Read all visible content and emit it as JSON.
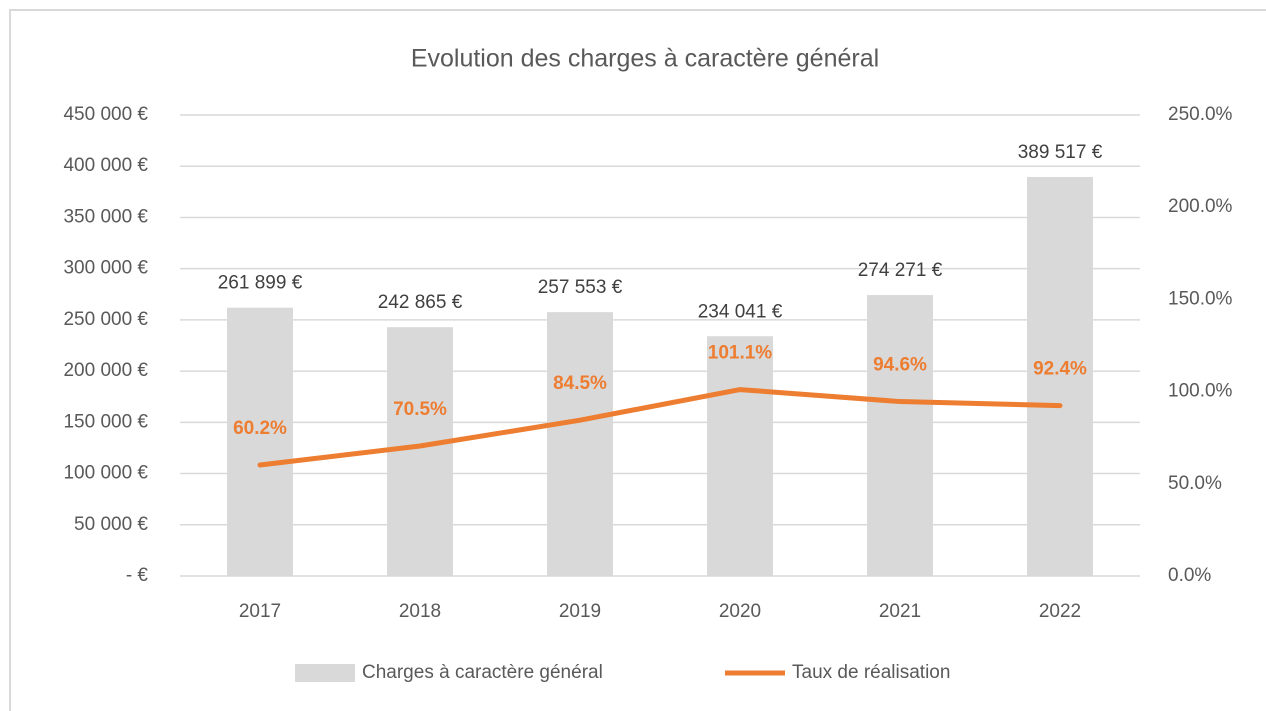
{
  "chart_data": {
    "type": "bar",
    "title": "Evolution des charges à caractère général",
    "categories": [
      "2017",
      "2018",
      "2019",
      "2020",
      "2021",
      "2022"
    ],
    "series": [
      {
        "name": "Charges à caractère général",
        "color": "#d9d9d9",
        "type": "bar",
        "values": [
          261899,
          242865,
          257553,
          234041,
          274271,
          389517
        ],
        "value_labels": [
          "261 899 €",
          "242 865 €",
          "257 553 €",
          "234 041 €",
          "274 271 €",
          "389 517 €"
        ]
      },
      {
        "name": "Taux de réalisation",
        "color": "#ed7d31",
        "type": "line",
        "axis": "y2",
        "values": [
          60.2,
          70.5,
          84.5,
          101.1,
          94.6,
          92.4
        ],
        "value_labels": [
          "60.2%",
          "70.5%",
          "84.5%",
          "101.1%",
          "94.6%",
          "92.4%"
        ]
      }
    ],
    "ylim": [
      0,
      450000
    ],
    "yticks": [
      {
        "value": 0,
        "label": "-   €"
      },
      {
        "value": 50000,
        "label": "50 000 €"
      },
      {
        "value": 100000,
        "label": "100 000 €"
      },
      {
        "value": 150000,
        "label": "150 000 €"
      },
      {
        "value": 200000,
        "label": "200 000 €"
      },
      {
        "value": 250000,
        "label": "250 000 €"
      },
      {
        "value": 300000,
        "label": "300 000 €"
      },
      {
        "value": 350000,
        "label": "350 000 €"
      },
      {
        "value": 400000,
        "label": "400 000 €"
      },
      {
        "value": 450000,
        "label": "450 000 €"
      }
    ],
    "y2lim": [
      0,
      250
    ],
    "y2ticks": [
      {
        "value": 0,
        "label": "0.0%"
      },
      {
        "value": 50,
        "label": "50.0%"
      },
      {
        "value": 100,
        "label": "100.0%"
      },
      {
        "value": 150,
        "label": "150.0%"
      },
      {
        "value": 200,
        "label": "200.0%"
      },
      {
        "value": 250,
        "label": "250.0%"
      }
    ],
    "grid": true,
    "legend": "bottom"
  }
}
